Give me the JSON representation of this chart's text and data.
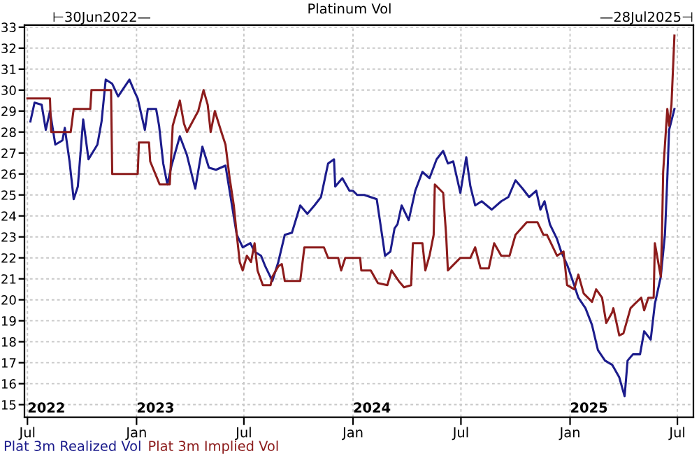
{
  "chart_data": {
    "type": "line",
    "title": "Platinum Vol",
    "annotations": [
      "⊢30Jun2022—",
      "—28Jul2025⊣",
      "2022",
      "2023",
      "2024",
      "2025"
    ],
    "xlim": [
      "2022-06-26",
      "2025-07-28"
    ],
    "xticks": [
      {
        "value": "2022-07-01",
        "label": "Jul"
      },
      {
        "value": "2023-01-01",
        "label": "Jan"
      },
      {
        "value": "2023-07-01",
        "label": "Jul"
      },
      {
        "value": "2024-01-01",
        "label": "Jan"
      },
      {
        "value": "2024-07-01",
        "label": "Jul"
      },
      {
        "value": "2025-01-01",
        "label": "Jan"
      },
      {
        "value": "2025-07-01",
        "label": "Jul"
      }
    ],
    "ylim": [
      14.4,
      33.1
    ],
    "yticks": [
      15,
      16,
      17,
      18,
      19,
      20,
      21,
      22,
      23,
      24,
      25,
      26,
      27,
      28,
      29,
      30,
      31,
      32,
      33
    ],
    "grid": true,
    "legend": "bottom left",
    "series": [
      {
        "name": "Plat 3m Realized Vol",
        "color": "#1c1c8c",
        "x": [
          "2022-07-06",
          "2022-07-13",
          "2022-07-25",
          "2022-08-01",
          "2022-08-08",
          "2022-08-17",
          "2022-08-29",
          "2022-09-02",
          "2022-09-10",
          "2022-09-17",
          "2022-09-24",
          "2022-10-03",
          "2022-10-12",
          "2022-10-27",
          "2022-11-03",
          "2022-11-10",
          "2022-11-21",
          "2022-12-01",
          "2022-12-08",
          "2022-12-20",
          "2022-12-29",
          "2023-01-03",
          "2023-01-15",
          "2023-01-20",
          "2023-02-03",
          "2023-02-08",
          "2023-02-15",
          "2023-02-22",
          "2023-03-01",
          "2023-03-15",
          "2023-03-27",
          "2023-04-10",
          "2023-04-22",
          "2023-05-03",
          "2023-05-15",
          "2023-05-31",
          "2023-06-19",
          "2023-06-29",
          "2023-07-12",
          "2023-07-19",
          "2023-07-30",
          "2023-08-06",
          "2023-08-18",
          "2023-08-28",
          "2023-09-08",
          "2023-09-20",
          "2023-10-04",
          "2023-10-16",
          "2023-10-28",
          "2023-11-08",
          "2023-11-20",
          "2023-11-30",
          "2023-12-02",
          "2023-12-14",
          "2023-12-26",
          "2024-01-01",
          "2024-01-08",
          "2024-01-20",
          "2024-02-10",
          "2024-02-21",
          "2024-02-24",
          "2024-03-04",
          "2024-03-11",
          "2024-03-16",
          "2024-03-23",
          "2024-04-04",
          "2024-04-15",
          "2024-04-27",
          "2024-05-09",
          "2024-05-21",
          "2024-06-01",
          "2024-06-09",
          "2024-06-18",
          "2024-06-30",
          "2024-07-10",
          "2024-07-17",
          "2024-07-25",
          "2024-08-05",
          "2024-08-22",
          "2024-09-07",
          "2024-09-19",
          "2024-10-01",
          "2024-10-13",
          "2024-10-24",
          "2024-11-05",
          "2024-11-12",
          "2024-11-19",
          "2024-11-28",
          "2024-12-10",
          "2024-12-17",
          "2024-12-28",
          "2025-01-08",
          "2025-01-15",
          "2025-01-27",
          "2025-02-07",
          "2025-02-17",
          "2025-03-01",
          "2025-03-13",
          "2025-03-25",
          "2025-04-03",
          "2025-04-08",
          "2025-04-17",
          "2025-04-29",
          "2025-05-06",
          "2025-05-17",
          "2025-05-24",
          "2025-06-03",
          "2025-06-10",
          "2025-06-14",
          "2025-06-17",
          "2025-06-26"
        ],
        "values": [
          28.5,
          29.4,
          29.3,
          28.1,
          29.0,
          27.4,
          27.6,
          28.2,
          26.6,
          24.8,
          25.4,
          28.6,
          26.7,
          27.4,
          28.5,
          30.5,
          30.3,
          29.7,
          30.0,
          30.5,
          29.9,
          29.6,
          28.1,
          29.1,
          29.1,
          28.3,
          26.5,
          25.5,
          26.4,
          27.8,
          26.9,
          25.3,
          27.3,
          26.3,
          26.2,
          26.4,
          23.1,
          22.5,
          22.7,
          22.3,
          22.1,
          21.6,
          20.9,
          21.8,
          23.1,
          23.2,
          24.5,
          24.1,
          24.5,
          24.9,
          26.5,
          26.7,
          25.4,
          25.8,
          25.2,
          25.2,
          25.0,
          25.0,
          24.8,
          22.7,
          22.1,
          22.3,
          23.4,
          23.6,
          24.5,
          23.8,
          25.2,
          26.1,
          25.8,
          26.7,
          27.1,
          26.5,
          26.6,
          25.1,
          26.8,
          25.4,
          24.5,
          24.7,
          24.3,
          24.7,
          24.9,
          25.7,
          25.3,
          24.9,
          25.2,
          24.3,
          24.7,
          23.6,
          22.9,
          22.3,
          21.6,
          20.7,
          20.1,
          19.6,
          18.8,
          17.6,
          17.1,
          16.9,
          16.3,
          15.4,
          17.1,
          17.4,
          17.4,
          18.5,
          18.1,
          19.8,
          21.1,
          23.1,
          25.8,
          28.1,
          29.1
        ]
      },
      {
        "name": "Plat 3m Implied Vol",
        "color": "#8c1c1c",
        "x": [
          "2022-07-01",
          "2022-08-08",
          "2022-08-10",
          "2022-09-12",
          "2022-09-17",
          "2022-10-15",
          "2022-10-17",
          "2022-11-19",
          "2022-11-21",
          "2023-01-03",
          "2023-01-05",
          "2023-01-22",
          "2023-01-24",
          "2023-02-09",
          "2023-02-26",
          "2023-03-03",
          "2023-03-15",
          "2023-03-22",
          "2023-03-27",
          "2023-04-15",
          "2023-04-24",
          "2023-05-01",
          "2023-05-06",
          "2023-05-13",
          "2023-05-24",
          "2023-05-31",
          "2023-06-07",
          "2023-06-14",
          "2023-06-19",
          "2023-06-24",
          "2023-06-29",
          "2023-07-06",
          "2023-07-13",
          "2023-07-19",
          "2023-07-24",
          "2023-08-02",
          "2023-08-15",
          "2023-08-18",
          "2023-08-28",
          "2023-09-03",
          "2023-09-08",
          "2023-10-04",
          "2023-10-11",
          "2023-11-13",
          "2023-11-20",
          "2023-12-07",
          "2023-12-12",
          "2023-12-19",
          "2024-01-13",
          "2024-01-15",
          "2024-01-31",
          "2024-02-12",
          "2024-02-28",
          "2024-03-06",
          "2024-03-18",
          "2024-03-27",
          "2024-04-08",
          "2024-04-11",
          "2024-04-27",
          "2024-05-02",
          "2024-05-09",
          "2024-05-16",
          "2024-05-18",
          "2024-06-01",
          "2024-06-06",
          "2024-06-09",
          "2024-06-30",
          "2024-07-17",
          "2024-07-25",
          "2024-08-03",
          "2024-08-17",
          "2024-08-26",
          "2024-09-07",
          "2024-09-21",
          "2024-10-01",
          "2024-10-20",
          "2024-11-07",
          "2024-11-17",
          "2024-11-23",
          "2024-12-10",
          "2024-12-21",
          "2024-12-27",
          "2025-01-08",
          "2025-01-15",
          "2025-01-24",
          "2025-01-31",
          "2025-02-07",
          "2025-02-14",
          "2025-02-24",
          "2025-03-03",
          "2025-03-13",
          "2025-03-15",
          "2025-03-25",
          "2025-04-01",
          "2025-04-13",
          "2025-04-20",
          "2025-05-01",
          "2025-05-06",
          "2025-05-13",
          "2025-05-22",
          "2025-05-24",
          "2025-06-03",
          "2025-06-05",
          "2025-06-07",
          "2025-06-14",
          "2025-06-17",
          "2025-06-21",
          "2025-06-26"
        ],
        "values": [
          29.6,
          29.6,
          28.0,
          28.0,
          29.1,
          29.1,
          30.0,
          30.0,
          26.0,
          26.0,
          27.5,
          27.5,
          26.6,
          25.5,
          25.5,
          28.3,
          29.5,
          28.4,
          28.0,
          29.0,
          30.0,
          29.3,
          28.0,
          29.0,
          28.0,
          27.4,
          25.8,
          24.5,
          23.1,
          21.8,
          21.4,
          22.1,
          21.8,
          22.7,
          21.4,
          20.7,
          20.7,
          21.1,
          21.6,
          21.7,
          20.9,
          20.9,
          22.5,
          22.5,
          22.0,
          22.0,
          21.4,
          22.0,
          22.0,
          21.4,
          21.4,
          20.8,
          20.7,
          21.4,
          20.9,
          20.6,
          20.7,
          22.7,
          22.7,
          21.4,
          22.1,
          23.1,
          25.5,
          25.1,
          23.1,
          21.4,
          22.0,
          22.0,
          22.5,
          21.5,
          21.5,
          22.7,
          22.1,
          22.1,
          23.1,
          23.7,
          23.7,
          23.1,
          23.1,
          22.1,
          22.3,
          20.7,
          20.5,
          21.2,
          20.3,
          20.1,
          19.9,
          20.5,
          20.1,
          18.9,
          19.4,
          19.6,
          18.3,
          18.4,
          19.6,
          19.8,
          20.1,
          19.5,
          20.1,
          20.1,
          22.7,
          21.1,
          23.1,
          26.1,
          29.1,
          28.3,
          29.3,
          32.6
        ]
      }
    ]
  }
}
